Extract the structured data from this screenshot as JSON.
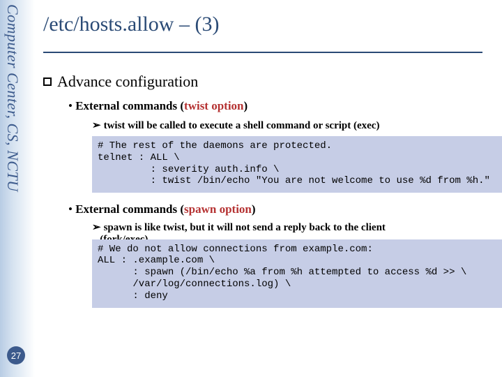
{
  "sidebar": {
    "vertical_label": "Computer Center, CS, NCTU",
    "page_number": "27"
  },
  "title": "/etc/hosts.allow – (3)",
  "section": {
    "heading": "Advance configuration",
    "item1": {
      "prefix": "•  ",
      "label_before": "External commands (",
      "highlight": "twist option",
      "label_after": ")",
      "sub": "twist will be called to execute a shell command or script (exec)",
      "code": "# The rest of the daemons are protected.\ntelnet : ALL \\\n         : severity auth.info \\\n         : twist /bin/echo \"You are not welcome to use %d from %h.\""
    },
    "item2": {
      "prefix": "•  ",
      "label_before": "External commands (",
      "highlight": "spawn option",
      "label_after": ")",
      "sub_line1": "spawn is like twist, but it will not send a reply back to the client",
      "sub_line2": "(fork/exec)",
      "code": "# We do not allow connections from example.com:\nALL : .example.com \\\n      : spawn (/bin/echo %a from %h attempted to access %d >> \\\n      /var/log/connections.log) \\\n      : deny"
    }
  },
  "colors": {
    "title_color": "#2a4a75",
    "sidebar_text": "#3c5a8c",
    "highlight_red": "#b53232",
    "code_bg": "#c6cde6"
  }
}
